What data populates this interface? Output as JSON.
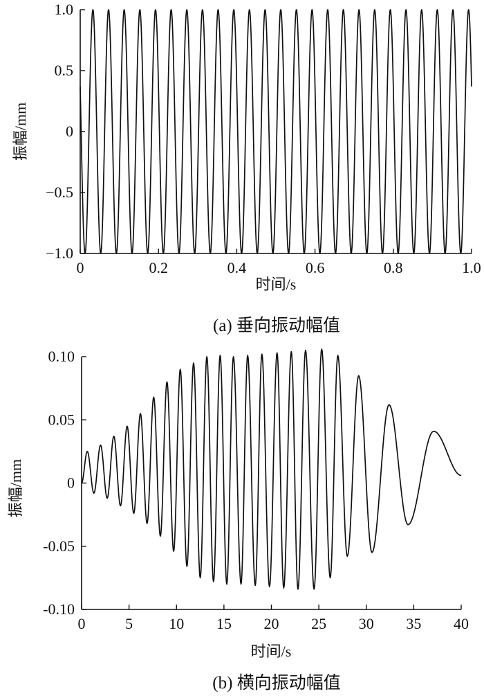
{
  "chart_data": [
    {
      "type": "line",
      "title": "",
      "caption": "(a)  垂向振动幅值",
      "xlabel": "时间/s",
      "ylabel": "振幅/mm",
      "xlim": [
        0,
        1.0
      ],
      "ylim": [
        -1.0,
        1.0
      ],
      "xticks": [
        0,
        0.2,
        0.4,
        0.6,
        0.8,
        1.0
      ],
      "xtick_labels": [
        "0",
        "0.2",
        "0.4",
        "0.6",
        "0.8",
        "1.0"
      ],
      "yticks": [
        -1.0,
        -0.5,
        0,
        0.5,
        1.0
      ],
      "ytick_labels": [
        "−1.0",
        "−0.5",
        "0",
        "0.5",
        "1.0"
      ],
      "grid": false,
      "series": [
        {
          "frequency_hz": 25,
          "amplitude": 1.0,
          "start_value": 0.37,
          "x": [
            0,
            0.004,
            0.01,
            0.02,
            0.03,
            0.04,
            0.05,
            0.06,
            0.07,
            0.08,
            0.1,
            0.2,
            0.3,
            0.4,
            0.5,
            0.6,
            0.7,
            0.8,
            0.9,
            0.96,
            0.98,
            1.0
          ],
          "y": [
            0.37,
            -0.6,
            -1.0,
            0,
            1.0,
            0,
            -1.0,
            0,
            1.0,
            0,
            -1.0,
            -1.0,
            -1.0,
            -1.0,
            -1.0,
            -1.0,
            -1.0,
            -1.0,
            -1.0,
            1.0,
            -1.0,
            1.0
          ]
        }
      ]
    },
    {
      "type": "line",
      "title": "",
      "caption": "(b)  横向振动幅值",
      "xlabel": "时间/s",
      "ylabel": "振幅/mm",
      "xlim": [
        0,
        40
      ],
      "ylim": [
        -0.1,
        0.1
      ],
      "xticks": [
        0,
        5,
        10,
        15,
        20,
        25,
        30,
        35,
        40
      ],
      "xtick_labels": [
        "0",
        "5",
        "10",
        "15",
        "20",
        "25",
        "30",
        "35",
        "40"
      ],
      "yticks": [
        -0.1,
        -0.05,
        0,
        0.05,
        0.1
      ],
      "ytick_labels": [
        "-0.10",
        "-0.05",
        "0",
        "0.05",
        "0.10"
      ],
      "grid": false,
      "series": [
        {
          "x": [
            0,
            0.6,
            1.3,
            2.0,
            2.7,
            3.4,
            4.1,
            4.8,
            5.5,
            6.2,
            6.9,
            7.6,
            8.3,
            9.0,
            9.7,
            10.4,
            11.1,
            11.8,
            12.5,
            13.2,
            13.9,
            14.6,
            15.3,
            16.0,
            16.8,
            17.5,
            18.3,
            19.0,
            19.8,
            20.6,
            21.3,
            22.1,
            22.8,
            23.6,
            24.5,
            25.3,
            26.2,
            27.0,
            28.0,
            29.2,
            30.6,
            32.4,
            34.4,
            37.1,
            40.0
          ],
          "y": [
            0,
            0.025,
            -0.008,
            0.03,
            -0.012,
            0.037,
            -0.018,
            0.045,
            -0.024,
            0.055,
            -0.032,
            0.068,
            -0.042,
            0.08,
            -0.054,
            0.09,
            -0.066,
            0.095,
            -0.075,
            0.1,
            -0.078,
            0.101,
            -0.08,
            0.1,
            -0.08,
            0.101,
            -0.081,
            0.102,
            -0.082,
            0.103,
            -0.083,
            0.104,
            -0.084,
            0.105,
            -0.084,
            0.106,
            -0.075,
            0.101,
            -0.058,
            0.085,
            -0.055,
            0.062,
            -0.033,
            0.041,
            0.006
          ]
        }
      ]
    }
  ]
}
